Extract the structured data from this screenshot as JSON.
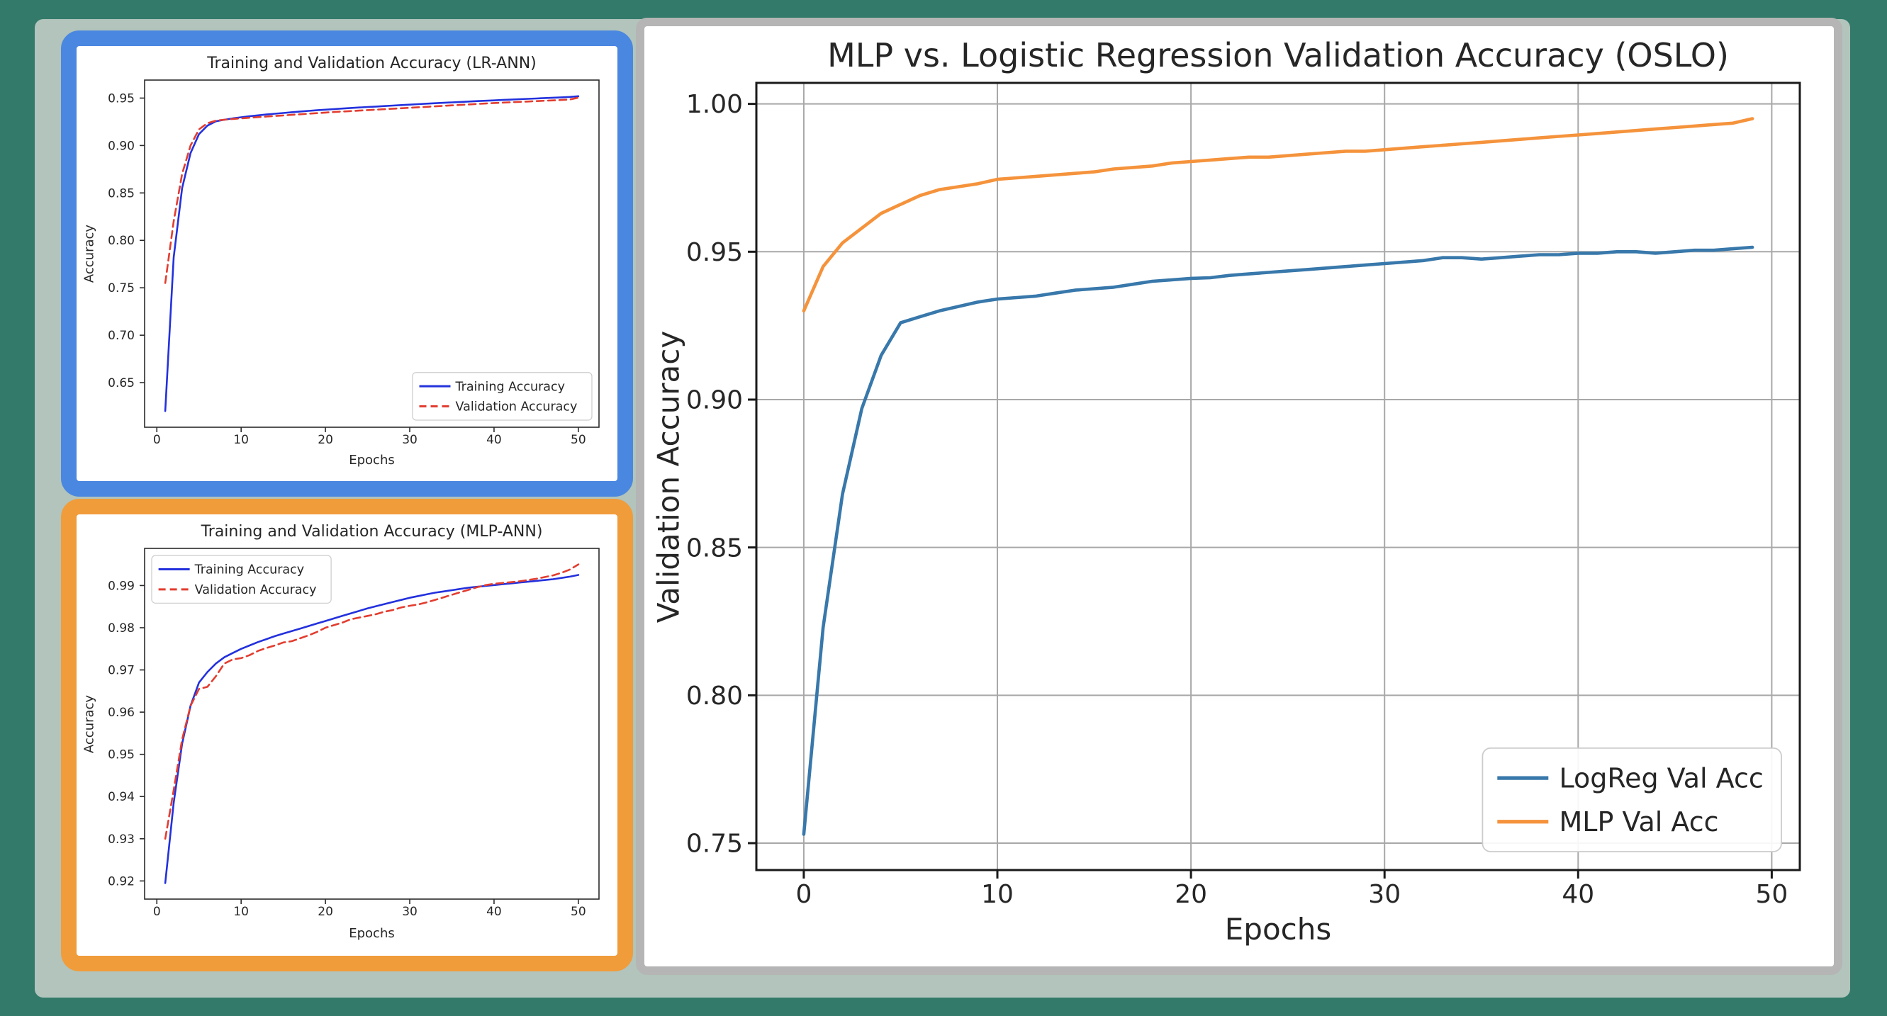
{
  "palette": {
    "outer_background": "#337a6a",
    "panel_background": "#b2c4bb",
    "lr_panel_border": "#4a87e0",
    "mlp_panel_border": "#f09c3b",
    "main_panel_border": "#b5b5b5",
    "lr_train_line": "#2331dd",
    "lr_val_line": "#e23d30",
    "main_logreg_line": "#3878ab",
    "main_mlp_line": "#f5933c"
  },
  "chart_data": [
    {
      "id": "lr-ann",
      "type": "line",
      "title": "Training and Validation Accuracy (LR-ANN)",
      "xlabel": "Epochs",
      "ylabel": "Accuracy",
      "xlim": [
        -1.45,
        52.45
      ],
      "ylim": [
        0.603,
        0.969
      ],
      "xticks": [
        0,
        10,
        20,
        30,
        40,
        50
      ],
      "yticks": [
        0.65,
        0.7,
        0.75,
        0.8,
        0.85,
        0.9,
        0.95
      ],
      "grid": false,
      "legend_position": "lower right",
      "x": [
        1,
        2,
        3,
        4,
        5,
        6,
        7,
        8,
        9,
        10,
        11,
        12,
        13,
        14,
        15,
        16,
        17,
        18,
        19,
        20,
        21,
        22,
        23,
        24,
        25,
        26,
        27,
        28,
        29,
        30,
        31,
        32,
        33,
        34,
        35,
        36,
        37,
        38,
        39,
        40,
        41,
        42,
        43,
        44,
        45,
        46,
        47,
        48,
        49,
        50
      ],
      "series": [
        {
          "name": "Training Accuracy",
          "color": "#2331dd",
          "linestyle": "solid",
          "values": [
            0.62,
            0.782,
            0.855,
            0.892,
            0.912,
            0.921,
            0.9255,
            0.9272,
            0.9286,
            0.9298,
            0.9308,
            0.9318,
            0.9327,
            0.9335,
            0.9343,
            0.9351,
            0.9358,
            0.9365,
            0.9372,
            0.9378,
            0.9384,
            0.939,
            0.9396,
            0.9401,
            0.9406,
            0.9411,
            0.9416,
            0.9421,
            0.9426,
            0.9431,
            0.9436,
            0.9441,
            0.9446,
            0.945,
            0.9455,
            0.9459,
            0.9464,
            0.9468,
            0.9472,
            0.9476,
            0.948,
            0.9484,
            0.9488,
            0.9492,
            0.9496,
            0.95,
            0.9504,
            0.9508,
            0.9512,
            0.952
          ]
        },
        {
          "name": "Validation Accuracy",
          "color": "#e23d30",
          "linestyle": "dashed",
          "values": [
            0.755,
            0.82,
            0.87,
            0.9,
            0.917,
            0.9235,
            0.9262,
            0.9272,
            0.928,
            0.9287,
            0.9293,
            0.9299,
            0.9305,
            0.9311,
            0.9317,
            0.9323,
            0.9329,
            0.9335,
            0.9341,
            0.9347,
            0.9353,
            0.9358,
            0.9363,
            0.9368,
            0.9373,
            0.9378,
            0.9383,
            0.9388,
            0.9393,
            0.9398,
            0.9403,
            0.9408,
            0.9413,
            0.9418,
            0.9423,
            0.9428,
            0.9433,
            0.9438,
            0.9443,
            0.9448,
            0.9452,
            0.9456,
            0.946,
            0.9464,
            0.9468,
            0.9472,
            0.9476,
            0.948,
            0.9485,
            0.9505
          ]
        }
      ]
    },
    {
      "id": "mlp-ann",
      "type": "line",
      "title": "Training and Validation Accuracy (MLP-ANN)",
      "xlabel": "Epochs",
      "ylabel": "Accuracy",
      "xlim": [
        -1.45,
        52.45
      ],
      "ylim": [
        0.9157,
        0.9988
      ],
      "xticks": [
        0,
        10,
        20,
        30,
        40,
        50
      ],
      "yticks": [
        0.92,
        0.93,
        0.94,
        0.95,
        0.96,
        0.97,
        0.98,
        0.99
      ],
      "grid": false,
      "legend_position": "upper left",
      "x": [
        1,
        2,
        3,
        4,
        5,
        6,
        7,
        8,
        9,
        10,
        11,
        12,
        13,
        14,
        15,
        16,
        17,
        18,
        19,
        20,
        21,
        22,
        23,
        24,
        25,
        26,
        27,
        28,
        29,
        30,
        31,
        32,
        33,
        34,
        35,
        36,
        37,
        38,
        39,
        40,
        41,
        42,
        43,
        44,
        45,
        46,
        47,
        48,
        49,
        50
      ],
      "series": [
        {
          "name": "Training Accuracy",
          "color": "#2331dd",
          "linestyle": "solid",
          "values": [
            0.9195,
            0.9385,
            0.9525,
            0.9615,
            0.967,
            0.9695,
            0.9715,
            0.973,
            0.974,
            0.975,
            0.9758,
            0.9766,
            0.9773,
            0.978,
            0.9786,
            0.9792,
            0.9798,
            0.9804,
            0.981,
            0.9816,
            0.9822,
            0.9828,
            0.9834,
            0.984,
            0.9846,
            0.9851,
            0.9856,
            0.9861,
            0.9866,
            0.9871,
            0.9875,
            0.9879,
            0.9883,
            0.9886,
            0.9889,
            0.9892,
            0.9895,
            0.9897,
            0.9899,
            0.9901,
            0.9903,
            0.9905,
            0.9907,
            0.9909,
            0.9911,
            0.9913,
            0.9915,
            0.9918,
            0.9921,
            0.9925
          ]
        },
        {
          "name": "Validation Accuracy",
          "color": "#e23d30",
          "linestyle": "dashed",
          "values": [
            0.93,
            0.9415,
            0.9535,
            0.9615,
            0.9655,
            0.966,
            0.9685,
            0.9715,
            0.9725,
            0.9728,
            0.9735,
            0.9745,
            0.9752,
            0.9758,
            0.9765,
            0.9768,
            0.9775,
            0.9782,
            0.979,
            0.98,
            0.9806,
            0.9812,
            0.982,
            0.9824,
            0.9828,
            0.9832,
            0.9838,
            0.9842,
            0.9848,
            0.9852,
            0.9855,
            0.986,
            0.9866,
            0.9872,
            0.9878,
            0.9884,
            0.989,
            0.9896,
            0.9901,
            0.9904,
            0.9906,
            0.9908,
            0.991,
            0.9913,
            0.9916,
            0.992,
            0.9924,
            0.993,
            0.9938,
            0.995
          ]
        }
      ]
    },
    {
      "id": "oslo-comparison",
      "type": "line",
      "title": "MLP vs. Logistic Regression Validation Accuracy (OSLO)",
      "xlabel": "Epochs",
      "ylabel": "Validation Accuracy",
      "xlim": [
        -2.45,
        51.45
      ],
      "ylim": [
        0.7409,
        1.0071
      ],
      "xticks": [
        0,
        10,
        20,
        30,
        40,
        50
      ],
      "yticks": [
        0.75,
        0.8,
        0.85,
        0.9,
        0.95,
        1.0
      ],
      "grid": true,
      "legend_position": "lower right",
      "x": [
        0,
        1,
        2,
        3,
        4,
        5,
        6,
        7,
        8,
        9,
        10,
        11,
        12,
        13,
        14,
        15,
        16,
        17,
        18,
        19,
        20,
        21,
        22,
        23,
        24,
        25,
        26,
        27,
        28,
        29,
        30,
        31,
        32,
        33,
        34,
        35,
        36,
        37,
        38,
        39,
        40,
        41,
        42,
        43,
        44,
        45,
        46,
        47,
        48,
        49
      ],
      "series": [
        {
          "name": "LogReg Val Acc",
          "color": "#3878ab",
          "linestyle": "solid",
          "values": [
            0.753,
            0.823,
            0.868,
            0.897,
            0.915,
            0.926,
            0.928,
            0.93,
            0.9315,
            0.933,
            0.934,
            0.9345,
            0.935,
            0.936,
            0.937,
            0.9375,
            0.938,
            0.939,
            0.94,
            0.9405,
            0.941,
            0.9412,
            0.942,
            0.9425,
            0.943,
            0.9435,
            0.944,
            0.9445,
            0.945,
            0.9455,
            0.946,
            0.9465,
            0.947,
            0.948,
            0.948,
            0.9475,
            0.948,
            0.9485,
            0.949,
            0.949,
            0.9495,
            0.9495,
            0.95,
            0.95,
            0.9495,
            0.95,
            0.9505,
            0.9505,
            0.951,
            0.9515
          ]
        },
        {
          "name": "MLP Val Acc",
          "color": "#f5933c",
          "linestyle": "solid",
          "values": [
            0.93,
            0.945,
            0.953,
            0.958,
            0.963,
            0.966,
            0.969,
            0.971,
            0.972,
            0.973,
            0.9745,
            0.975,
            0.9755,
            0.976,
            0.9765,
            0.977,
            0.978,
            0.9785,
            0.979,
            0.98,
            0.9805,
            0.981,
            0.9815,
            0.982,
            0.982,
            0.9825,
            0.983,
            0.9835,
            0.984,
            0.984,
            0.9845,
            0.985,
            0.9855,
            0.986,
            0.9865,
            0.987,
            0.9875,
            0.988,
            0.9885,
            0.989,
            0.9895,
            0.99,
            0.9905,
            0.991,
            0.9915,
            0.992,
            0.9925,
            0.993,
            0.9935,
            0.995
          ]
        }
      ]
    }
  ]
}
